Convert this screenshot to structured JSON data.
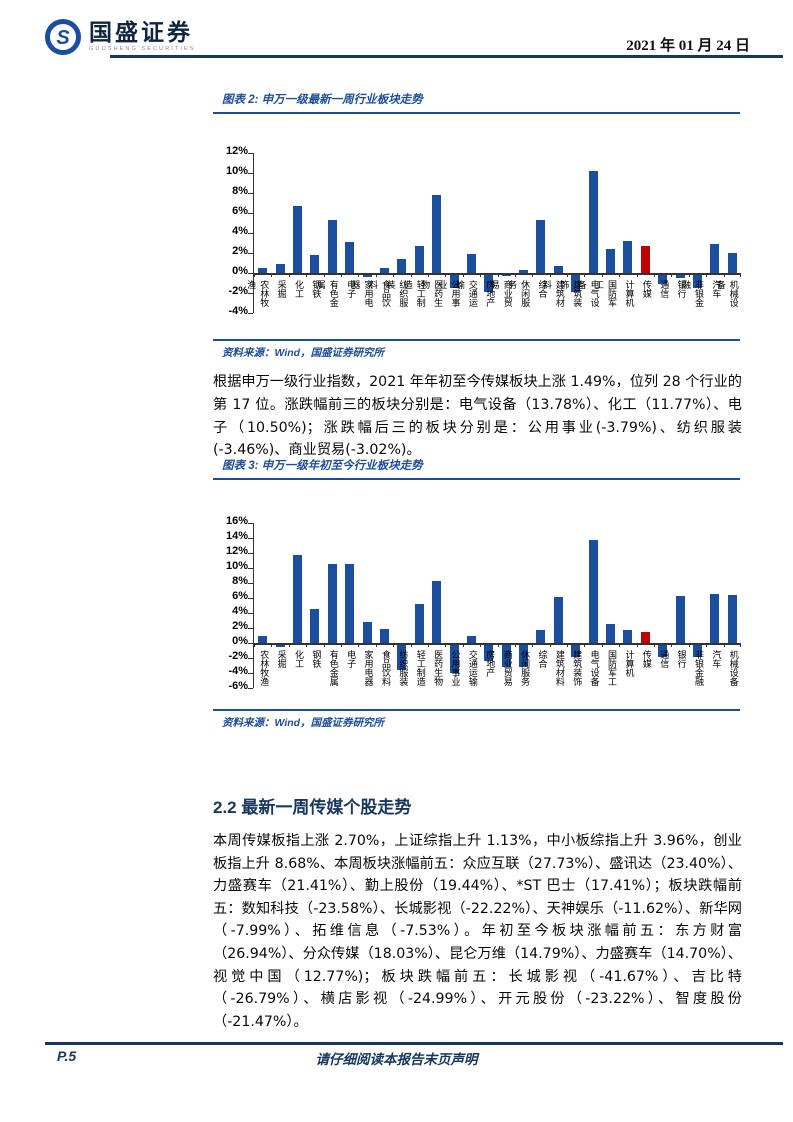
{
  "header": {
    "brand_cn": "国盛证券",
    "brand_en": "GUOSHENG SECURITIES",
    "date": "2021 年 01 月 24 日"
  },
  "figures": [
    {
      "caption": "图表 2: 申万一级最新一周行业板块走势",
      "source": "资料来源：Wind，国盛证券研究所"
    },
    {
      "caption": "图表 3: 申万一级年初至今行业板块走势",
      "source": "资料来源：Wind，国盛证券研究所"
    }
  ],
  "paragraph1": "根据申万一级行业指数，2021 年年初至今传媒板块上涨 1.49%，位列 28 个行业的第 17 位。涨跌幅前三的板块分别是：电气设备（13.78%）、化工（11.77%）、电子（10.50%)；涨跌幅后三的板块分别是：公用事业(-3.79%)、纺织服装(-3.46%)、商业贸易(-3.02%)。",
  "section_heading": "2.2 最新一周传媒个股走势",
  "paragraph2": "本周传媒板指上涨 2.70%，上证综指上升 1.13%，中小板综指上升 3.96%，创业板指上升 8.68%、本周板块涨幅前五：众应互联（27.73%）、盛讯达（23.40%）、力盛赛车（21.41%）、勤上股份（19.44%）、*ST 巴士（17.41%）；板块跌幅前五：数知科技（-23.58%）、长城影视（-22.22%）、天神娱乐（-11.62%）、新华网（-7.99%）、拓维信息（-7.53%）。年初至今板块涨幅前五：东方财富（26.94%）、分众传媒（18.03%）、昆仑万维（14.79%）、力盛赛车（14.70%）、视觉中国（12.77%)；板块跌幅前五：长城影视（-41.67%）、吉比特（-26.79%）、横店影视（-24.99%）、开元股份（-23.22%）、智度股份（-21.47%）。",
  "footer": {
    "page_number": "P.5",
    "disclaimer": "请仔细阅读本报告末页声明"
  },
  "colors": {
    "navy": "#17375e",
    "figure_blue": "#1f4e99",
    "bar_blue": "#1b4f9e",
    "bar_red": "#c00000"
  },
  "chart_data": [
    {
      "type": "bar",
      "title": "申万一级最新一周行业板块走势",
      "categories": [
        "农林牧渔",
        "采掘",
        "化工",
        "钢铁",
        "有色金属",
        "电子",
        "家用电器",
        "食品饮料",
        "纺织服装",
        "轻工制造",
        "医药生物",
        "公用事业",
        "交通运输",
        "房地产",
        "商业贸易",
        "休闲服务",
        "综合",
        "建筑材料",
        "建筑装饰",
        "电气设备",
        "国防军工",
        "计算机",
        "传媒",
        "通信",
        "银行",
        "非银金融",
        "汽车",
        "机械设备"
      ],
      "values": [
        0.5,
        0.9,
        6.7,
        1.8,
        5.3,
        3.1,
        -0.2,
        0.5,
        1.4,
        2.7,
        7.8,
        -1.3,
        1.9,
        -1.7,
        -0.15,
        0.35,
        5.3,
        0.75,
        -1.7,
        10.2,
        2.4,
        3.2,
        2.7,
        -0.9,
        -0.3,
        -1.3,
        2.9,
        2.0
      ],
      "highlight_category": "传媒",
      "bar_color": "#1b4f9e",
      "highlight_color": "#c00000",
      "ylim": [
        -4,
        12
      ],
      "ytick_step": 2,
      "ytick_format": "percent",
      "grid": false,
      "legend": false
    },
    {
      "type": "bar",
      "title": "申万一级年初至今行业板块走势",
      "categories": [
        "农林牧渔",
        "采掘",
        "化工",
        "钢铁",
        "有色金属",
        "电子",
        "家用电器",
        "食品饮料",
        "纺织服装",
        "轻工制造",
        "医药生物",
        "公用事业",
        "交通运输",
        "房地产",
        "商业贸易",
        "休闲服务",
        "综合",
        "建筑材料",
        "建筑装饰",
        "电气设备",
        "国防军工",
        "计算机",
        "传媒",
        "通信",
        "银行",
        "非银金融",
        "汽车",
        "机械设备"
      ],
      "values": [
        1.0,
        -0.3,
        11.77,
        4.5,
        10.5,
        10.5,
        2.8,
        1.9,
        -3.46,
        5.2,
        8.3,
        -3.79,
        1.0,
        -2.2,
        -3.02,
        -3.0,
        1.8,
        6.2,
        -1.7,
        13.78,
        2.5,
        1.8,
        1.49,
        -1.6,
        6.3,
        -1.7,
        6.5,
        6.4
      ],
      "highlight_category": "传媒",
      "bar_color": "#1b4f9e",
      "highlight_color": "#c00000",
      "ylim": [
        -6,
        16
      ],
      "ytick_step": 2,
      "ytick_format": "percent",
      "grid": false,
      "legend": false
    }
  ]
}
